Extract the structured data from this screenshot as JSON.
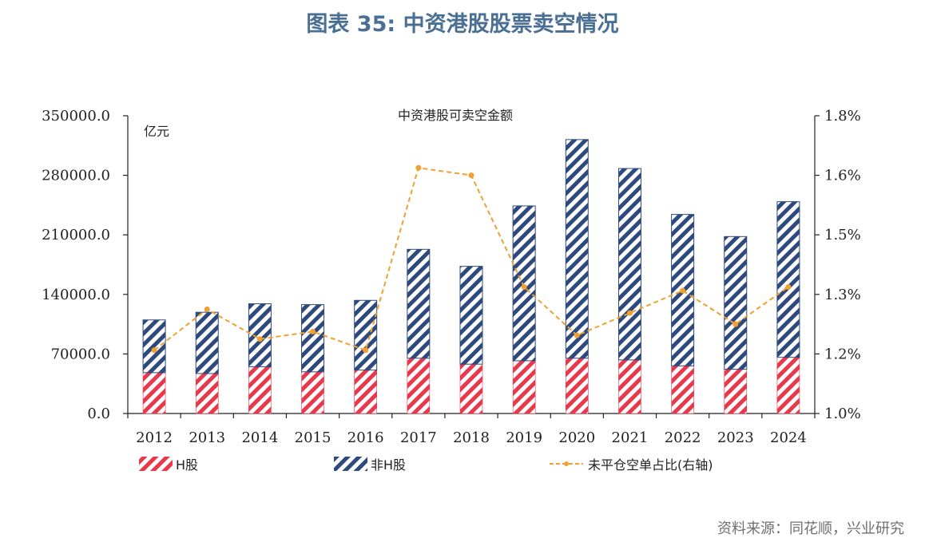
{
  "title": "图表 35: 中资港股股票卖空情况",
  "source": "资料来源：同花顺，兴业研究",
  "chart_data": {
    "type": "bar",
    "stacked": true,
    "chart_title": "中资港股可卖空金额",
    "left_unit": "亿元",
    "categories": [
      "2012",
      "2013",
      "2014",
      "2015",
      "2016",
      "2017",
      "2018",
      "2019",
      "2020",
      "2021",
      "2022",
      "2023",
      "2024"
    ],
    "series": [
      {
        "name": "H股",
        "type": "bar",
        "color": "#e8384c",
        "pattern": "diagonal-stripes",
        "values": [
          48000,
          47000,
          55000,
          49000,
          51000,
          65000,
          58000,
          62000,
          65000,
          63000,
          56000,
          52000,
          66000
        ]
      },
      {
        "name": "非H股",
        "type": "bar",
        "color": "#2e4a7d",
        "pattern": "diagonal-stripes",
        "values": [
          62000,
          72000,
          74000,
          79000,
          82000,
          128000,
          115000,
          182000,
          257000,
          225000,
          178000,
          156000,
          183000
        ]
      },
      {
        "name": "未平仓空单占比(右轴)",
        "type": "line",
        "axis": "right",
        "color": "#f0a030",
        "dash": true,
        "values": [
          1.17,
          1.28,
          1.2,
          1.22,
          1.17,
          1.66,
          1.64,
          1.34,
          1.21,
          1.27,
          1.33,
          1.24,
          1.34
        ]
      }
    ],
    "y_left": {
      "min": 0,
      "max": 350000,
      "ticks": [
        "0.0",
        "70000.0",
        "140000.0",
        "210000.0",
        "280000.0",
        "350000.0"
      ]
    },
    "y_right": {
      "min": 1.0,
      "max": 1.8,
      "ticks": [
        "1.0%",
        "1.2%",
        "1.3%",
        "1.5%",
        "1.6%",
        "1.8%"
      ]
    },
    "legend_position": "bottom"
  }
}
